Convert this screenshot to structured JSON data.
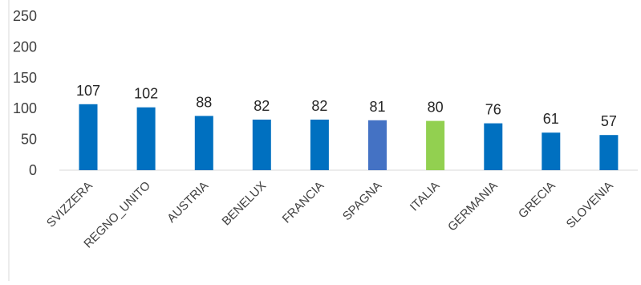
{
  "chart_data": {
    "type": "bar",
    "title": "",
    "xlabel": "",
    "ylabel": "",
    "ylim": [
      0,
      250
    ],
    "yticks": [
      0,
      50,
      100,
      150,
      200,
      250
    ],
    "grid": false,
    "legend": "none",
    "categories": [
      "SVIZZERA",
      "REGNO_UNITO",
      "AUSTRIA",
      "BENELUX",
      "FRANCIA",
      "SPAGNA",
      "ITALIA",
      "GERMANIA",
      "GRECIA",
      "SLOVENIA"
    ],
    "values": [
      107,
      102,
      88,
      82,
      82,
      81,
      80,
      76,
      61,
      57
    ],
    "data_labels": [
      "107",
      "102",
      "88",
      "82",
      "82",
      "81",
      "80",
      "76",
      "61",
      "57"
    ],
    "colors": {
      "default": "#0070c0",
      "highlights": {
        "SPAGNA": "#4472c4",
        "ITALIA": "#92d050"
      }
    }
  }
}
